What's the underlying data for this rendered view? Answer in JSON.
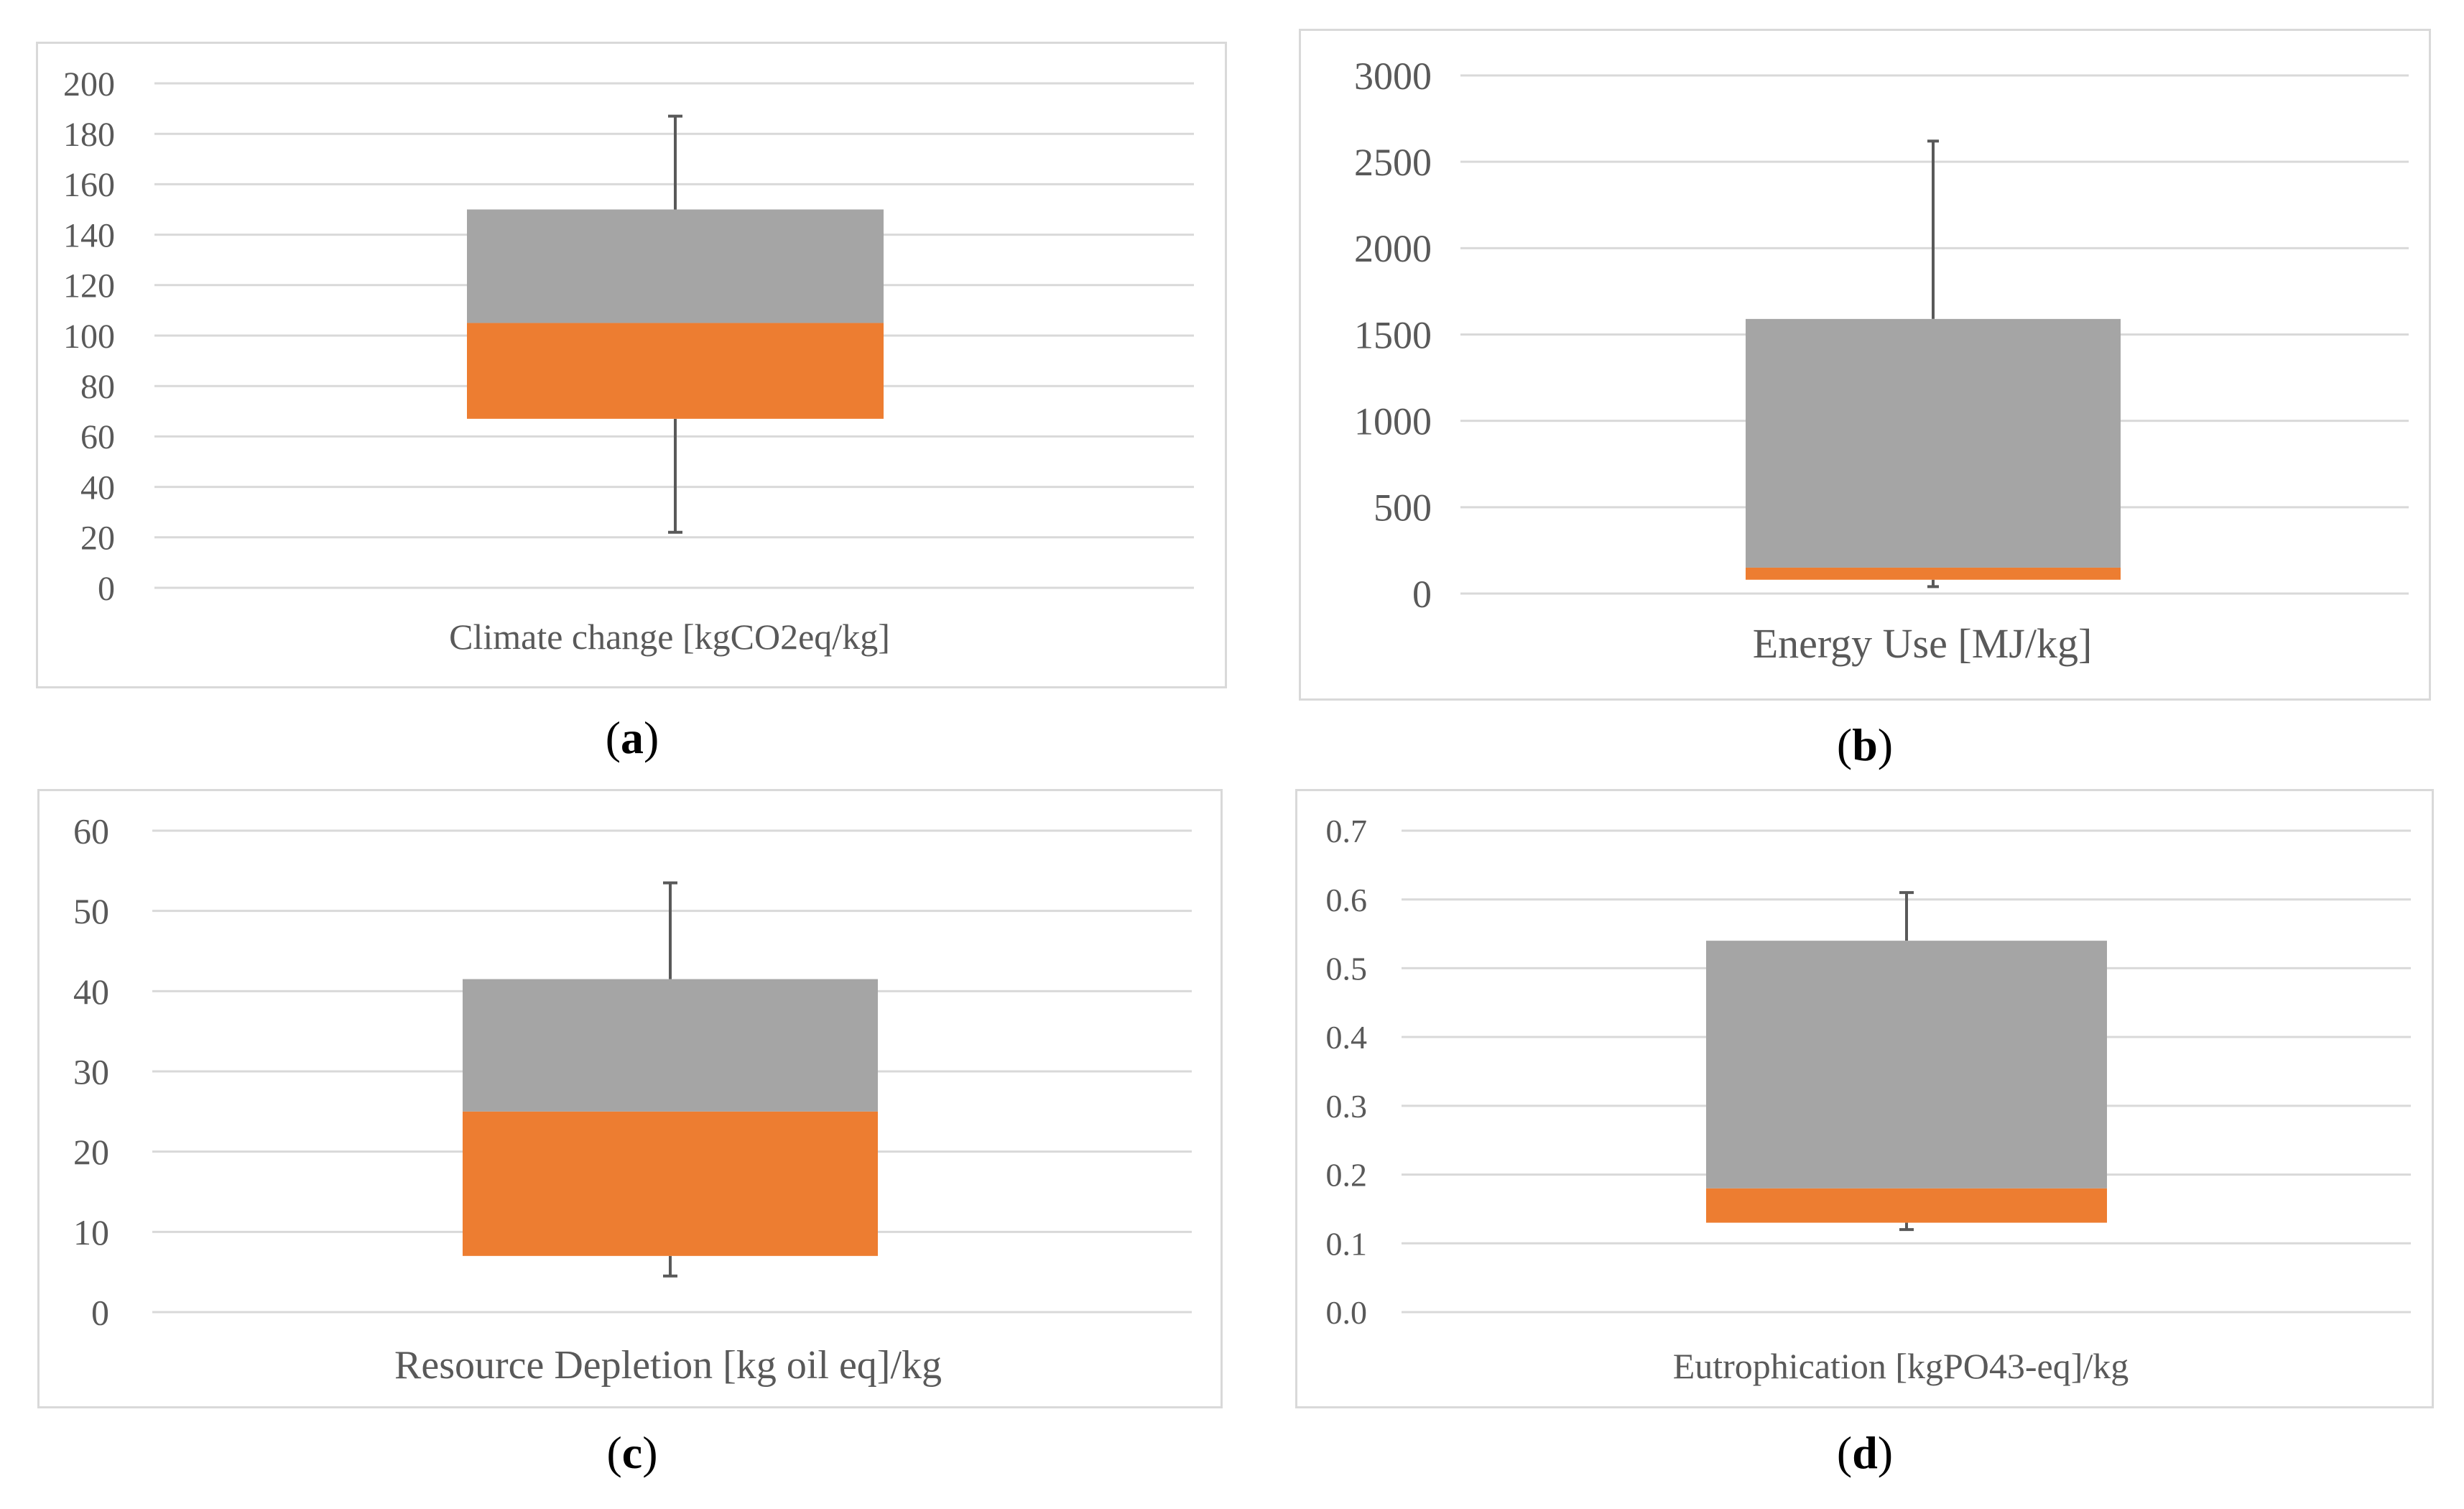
{
  "colors": {
    "upper": "#a5a5a5",
    "lower": "#ed7d31",
    "grid": "#d9d9d9",
    "text": "#595959",
    "frame": "#d9d9d9"
  },
  "chart_data": [
    {
      "id": "a",
      "type": "box",
      "caption": "a",
      "xlabel": "Climate change [kgCO2eq/kg]",
      "yticks": [
        "0",
        "20",
        "40",
        "60",
        "80",
        "100",
        "120",
        "140",
        "160",
        "180",
        "200"
      ],
      "ylim": [
        0,
        200
      ],
      "min": 22,
      "q1": 67,
      "median": 105,
      "q3": 150,
      "max": 187
    },
    {
      "id": "b",
      "type": "box",
      "caption": "b",
      "xlabel": "Energy Use [MJ/kg]",
      "yticks": [
        "0",
        "500",
        "1000",
        "1500",
        "2000",
        "2500",
        "3000"
      ],
      "ylim": [
        0,
        3000
      ],
      "min": 40,
      "q1": 80,
      "median": 150,
      "q3": 1590,
      "max": 2620
    },
    {
      "id": "c",
      "type": "box",
      "caption": "c",
      "xlabel": "Resource Depletion [kg oil eq]/kg",
      "yticks": [
        "0",
        "10",
        "20",
        "30",
        "40",
        "50",
        "60"
      ],
      "ylim": [
        0,
        60
      ],
      "min": 4.5,
      "q1": 7,
      "median": 25,
      "q3": 41.5,
      "max": 53.5
    },
    {
      "id": "d",
      "type": "box",
      "caption": "d",
      "xlabel": "Eutrophication [kgPO43-eq]/kg",
      "yticks": [
        "0.0",
        "0.1",
        "0.2",
        "0.3",
        "0.4",
        "0.5",
        "0.6",
        "0.7"
      ],
      "ylim": [
        0,
        0.7
      ],
      "min": 0.12,
      "q1": 0.13,
      "median": 0.18,
      "q3": 0.54,
      "max": 0.61
    }
  ]
}
